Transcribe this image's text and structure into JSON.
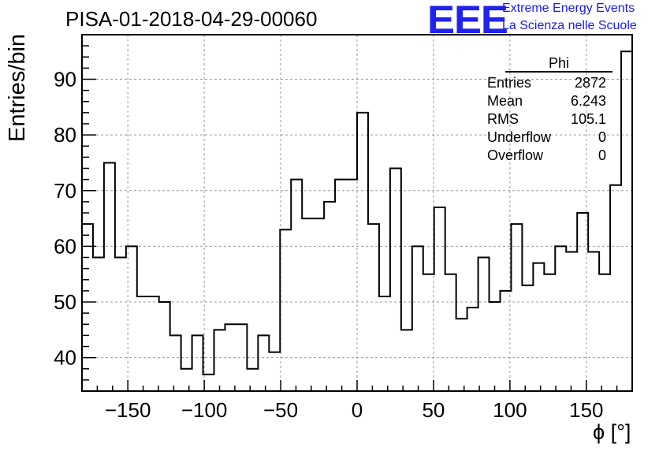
{
  "header": {
    "title": "PISA-01-2018-04-29-00060",
    "logo_text": "EEE",
    "brand_line1": "Extreme Energy Events",
    "brand_line2": "La Scienza nelle Scuole"
  },
  "stats_box": {
    "name": "Phi",
    "rows": [
      {
        "label": "Entries",
        "value": "2872"
      },
      {
        "label": "Mean",
        "value": "6.243"
      },
      {
        "label": "RMS",
        "value": "105.1"
      },
      {
        "label": "Underflow",
        "value": "0"
      },
      {
        "label": "Overflow",
        "value": "0"
      }
    ]
  },
  "colors": {
    "line": "#000000",
    "grid": "#999999",
    "brand": "#1a1aee"
  },
  "chart_data": {
    "type": "bar",
    "style": "step-histogram",
    "xlabel": "ϕ [°]",
    "ylabel": "Entries/bin",
    "xlim": [
      -180,
      180
    ],
    "ylim": [
      34,
      98
    ],
    "bin_width": 7.2,
    "x_ticks": [
      -150,
      -100,
      -50,
      0,
      50,
      100,
      150
    ],
    "x_tick_labels": [
      "−150",
      "−100",
      "−50",
      "0",
      "50",
      "100",
      "150"
    ],
    "y_ticks": [
      40,
      50,
      60,
      70,
      80,
      90
    ],
    "y_tick_labels": [
      "40",
      "50",
      "60",
      "70",
      "80",
      "90"
    ],
    "grid": true,
    "legend": "top-right",
    "values": [
      64,
      58,
      75,
      58,
      60,
      51,
      51,
      50,
      44,
      38,
      44,
      37,
      45,
      46,
      46,
      38,
      44,
      41,
      63,
      72,
      65,
      65,
      68,
      72,
      72,
      84,
      64,
      51,
      74,
      45,
      60,
      55,
      67,
      55,
      47,
      49,
      58,
      50,
      52,
      64,
      53,
      57,
      55,
      60,
      59,
      66,
      59,
      55,
      71,
      95
    ]
  }
}
